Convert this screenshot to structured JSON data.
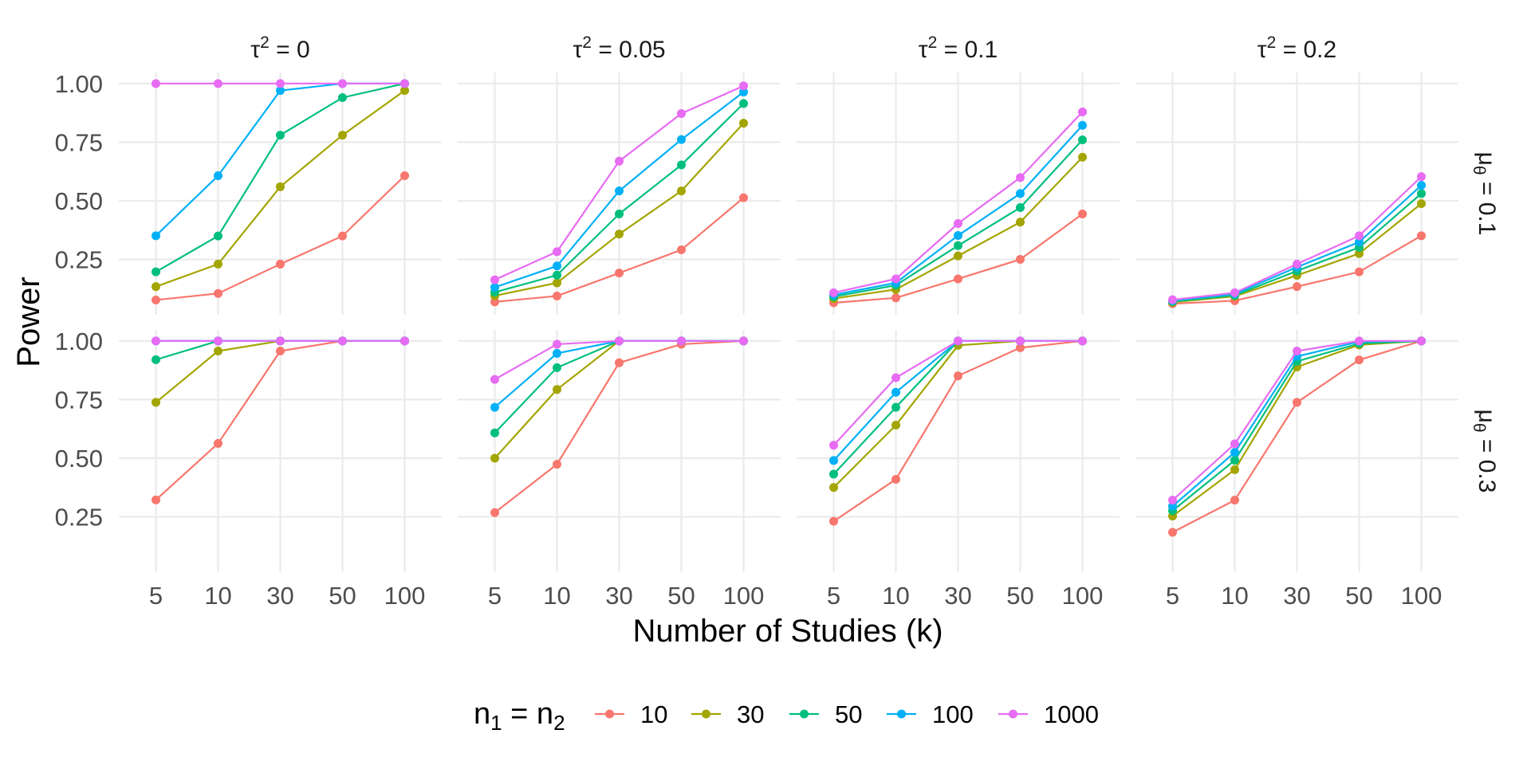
{
  "chart_data": {
    "type": "line",
    "facet": {
      "columns_label": "τ²",
      "columns": [
        {
          "label_base": "τ",
          "label_sup": "2",
          "label_rest": " = 0",
          "tau2": 0
        },
        {
          "label_base": "τ",
          "label_sup": "2",
          "label_rest": " = 0.05",
          "tau2": 0.05
        },
        {
          "label_base": "τ",
          "label_sup": "2",
          "label_rest": " = 0.1",
          "tau2": 0.1
        },
        {
          "label_base": "τ",
          "label_sup": "2",
          "label_rest": " = 0.2",
          "tau2": 0.2
        }
      ],
      "rows": [
        {
          "label_base": "μ",
          "label_sub": "θ",
          "label_rest": " = 0.1",
          "mu": 0.1
        },
        {
          "label_base": "μ",
          "label_sub": "θ",
          "label_rest": " = 0.3",
          "mu": 0.3
        }
      ]
    },
    "categories": [
      "5",
      "10",
      "30",
      "50",
      "100"
    ],
    "xlabel": "Number of Studies (k)",
    "ylabel": "Power",
    "ylim": [
      0.014,
      1.047
    ],
    "yticks": [
      0.25,
      0.5,
      0.75,
      1.0
    ],
    "ytick_labels": [
      "0.25",
      "0.50",
      "0.75",
      "1.00"
    ],
    "grid": true,
    "legend": {
      "position": "bottom",
      "title_base": "n",
      "title_sub1": "1",
      "title_mid": " = n",
      "title_sub2": "2"
    },
    "series": [
      {
        "name": "10",
        "color": "#F8766D"
      },
      {
        "name": "30",
        "color": "#A3A500"
      },
      {
        "name": "50",
        "color": "#00BF7D"
      },
      {
        "name": "100",
        "color": "#00B0F6"
      },
      {
        "name": "1000",
        "color": "#E76BF3"
      }
    ],
    "panels": [
      {
        "row": 0,
        "col": 0,
        "values": {
          "10": [
            0.077,
            0.105,
            0.23,
            0.35,
            0.607
          ],
          "30": [
            0.134,
            0.23,
            0.56,
            0.78,
            0.97
          ],
          "50": [
            0.197,
            0.35,
            0.78,
            0.94,
            1.0
          ],
          "100": [
            0.351,
            0.607,
            0.97,
            1.0,
            1.0
          ],
          "1000": [
            1.0,
            1.0,
            1.0,
            1.0,
            1.0
          ]
        }
      },
      {
        "row": 0,
        "col": 1,
        "values": {
          "10": [
            0.069,
            0.094,
            0.192,
            0.291,
            0.513
          ],
          "30": [
            0.095,
            0.15,
            0.358,
            0.542,
            0.831
          ],
          "50": [
            0.11,
            0.183,
            0.444,
            0.653,
            0.915
          ],
          "100": [
            0.131,
            0.222,
            0.542,
            0.761,
            0.964
          ],
          "1000": [
            0.163,
            0.283,
            0.669,
            0.872,
            0.99
          ]
        }
      },
      {
        "row": 0,
        "col": 2,
        "values": {
          "10": [
            0.065,
            0.086,
            0.167,
            0.25,
            0.444
          ],
          "30": [
            0.083,
            0.122,
            0.265,
            0.409,
            0.686
          ],
          "50": [
            0.091,
            0.14,
            0.309,
            0.471,
            0.76
          ],
          "100": [
            0.099,
            0.15,
            0.352,
            0.531,
            0.822
          ],
          "1000": [
            0.108,
            0.167,
            0.403,
            0.599,
            0.879
          ]
        }
      },
      {
        "row": 0,
        "col": 3,
        "values": {
          "10": [
            0.061,
            0.074,
            0.134,
            0.197,
            0.351
          ],
          "30": [
            0.067,
            0.093,
            0.182,
            0.275,
            0.488
          ],
          "50": [
            0.071,
            0.097,
            0.201,
            0.301,
            0.531
          ],
          "100": [
            0.074,
            0.103,
            0.217,
            0.324,
            0.566
          ],
          "1000": [
            0.078,
            0.108,
            0.23,
            0.351,
            0.603
          ]
        }
      },
      {
        "row": 1,
        "col": 0,
        "values": {
          "10": [
            0.322,
            0.563,
            0.957,
            1.0,
            1.0
          ],
          "30": [
            0.738,
            0.957,
            1.0,
            1.0,
            1.0
          ],
          "50": [
            0.92,
            1.0,
            1.0,
            1.0,
            1.0
          ],
          "100": [
            1.0,
            1.0,
            1.0,
            1.0,
            1.0
          ],
          "1000": [
            1.0,
            1.0,
            1.0,
            1.0,
            1.0
          ]
        }
      },
      {
        "row": 1,
        "col": 1,
        "values": {
          "10": [
            0.268,
            0.474,
            0.907,
            0.986,
            1.0
          ],
          "30": [
            0.5,
            0.793,
            1.0,
            1.0,
            1.0
          ],
          "50": [
            0.608,
            0.886,
            1.0,
            1.0,
            1.0
          ],
          "100": [
            0.717,
            0.947,
            1.0,
            1.0,
            1.0
          ],
          "1000": [
            0.836,
            0.986,
            1.0,
            1.0,
            1.0
          ]
        }
      },
      {
        "row": 1,
        "col": 2,
        "values": {
          "10": [
            0.231,
            0.41,
            0.851,
            0.971,
            1.0
          ],
          "30": [
            0.375,
            0.641,
            0.981,
            1.0,
            1.0
          ],
          "50": [
            0.432,
            0.717,
            1.0,
            1.0,
            1.0
          ],
          "100": [
            0.49,
            0.781,
            1.0,
            1.0,
            1.0
          ],
          "1000": [
            0.555,
            0.843,
            1.0,
            1.0,
            1.0
          ]
        }
      },
      {
        "row": 1,
        "col": 3,
        "values": {
          "10": [
            0.184,
            0.321,
            0.738,
            0.919,
            1.0
          ],
          "30": [
            0.253,
            0.451,
            0.889,
            0.983,
            1.0
          ],
          "50": [
            0.276,
            0.491,
            0.913,
            0.989,
            1.0
          ],
          "100": [
            0.295,
            0.525,
            0.934,
            0.997,
            1.0
          ],
          "1000": [
            0.321,
            0.561,
            0.957,
            1.0,
            1.0
          ]
        }
      }
    ]
  }
}
